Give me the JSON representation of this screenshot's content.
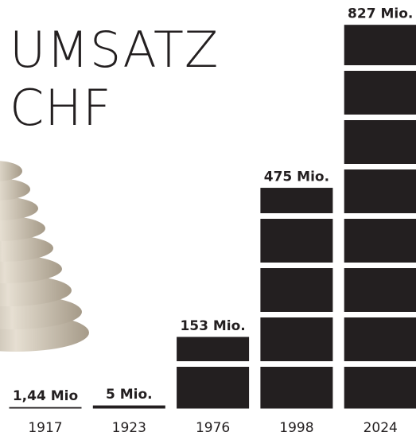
{
  "chart_data": {
    "type": "bar",
    "title": [
      "UMSATZ",
      "CHF"
    ],
    "categories": [
      "1917",
      "1923",
      "1976",
      "1998",
      "2024"
    ],
    "values": [
      1.44,
      5,
      153,
      475,
      827
    ],
    "value_labels": [
      "1,44 Mio",
      "5 Mio.",
      "153 Mio.",
      "475 Mio.",
      "827 Mio."
    ],
    "color": "#231f20"
  }
}
